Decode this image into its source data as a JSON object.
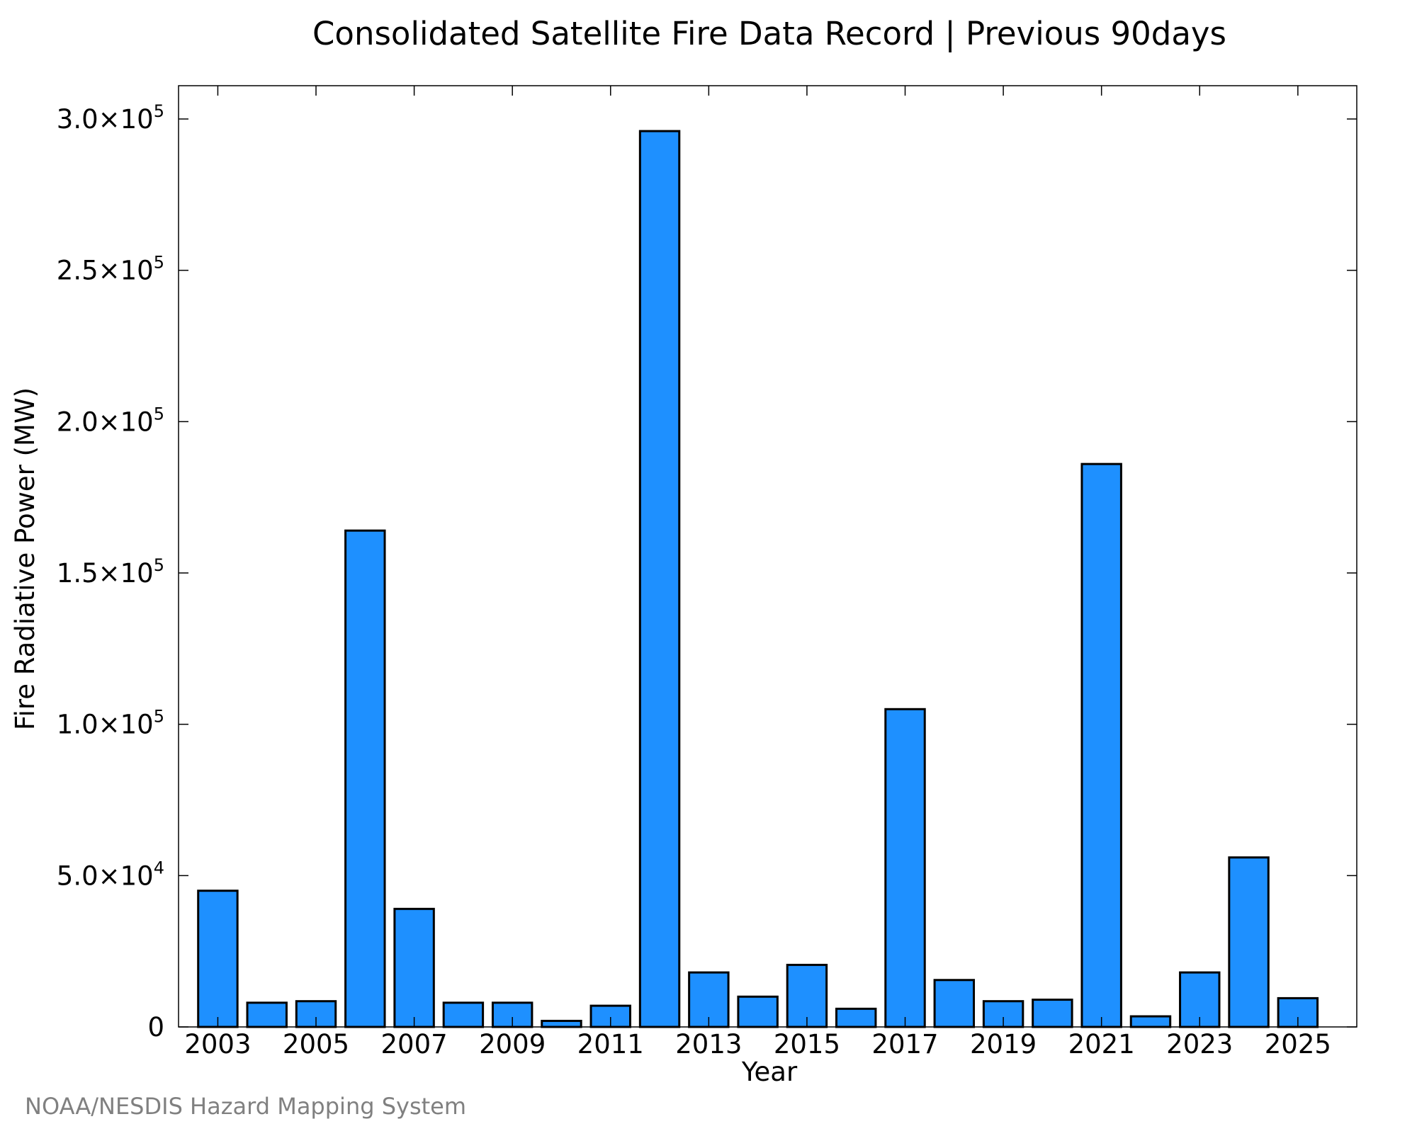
{
  "chart_data": {
    "type": "bar",
    "title": "Consolidated Satellite Fire Data Record | Previous 90days",
    "xlabel": "Year",
    "ylabel": "Fire Radiative Power (MW)",
    "categories": [
      2003,
      2004,
      2005,
      2006,
      2007,
      2008,
      2009,
      2010,
      2011,
      2012,
      2013,
      2014,
      2015,
      2016,
      2017,
      2018,
      2019,
      2020,
      2021,
      2022,
      2023,
      2024,
      2025
    ],
    "values": [
      45000,
      8000,
      8500,
      164000,
      39000,
      8000,
      8000,
      2000,
      7000,
      296000,
      18000,
      10000,
      20500,
      6000,
      105000,
      15500,
      8500,
      9000,
      186000,
      3500,
      18000,
      56000,
      9500
    ],
    "xlim": [
      2002.2,
      2026.2
    ],
    "ylim": [
      0,
      311000
    ],
    "x_ticks": [
      "2003",
      "2005",
      "2007",
      "2009",
      "2011",
      "2013",
      "2015",
      "2017",
      "2019",
      "2021",
      "2023",
      "2025"
    ],
    "x_tick_values": [
      2003,
      2005,
      2007,
      2009,
      2011,
      2013,
      2015,
      2017,
      2019,
      2021,
      2023,
      2025
    ],
    "y_ticks": [
      {
        "value": 0,
        "mantissa": "0",
        "times": "",
        "base": "",
        "exp": ""
      },
      {
        "value": 50000,
        "mantissa": "5.0",
        "times": "×",
        "base": "10",
        "exp": "4"
      },
      {
        "value": 100000,
        "mantissa": "1.0",
        "times": "×",
        "base": "10",
        "exp": "5"
      },
      {
        "value": 150000,
        "mantissa": "1.5",
        "times": "×",
        "base": "10",
        "exp": "5"
      },
      {
        "value": 200000,
        "mantissa": "2.0",
        "times": "×",
        "base": "10",
        "exp": "5"
      },
      {
        "value": 250000,
        "mantissa": "2.5",
        "times": "×",
        "base": "10",
        "exp": "5"
      },
      {
        "value": 300000,
        "mantissa": "3.0",
        "times": "×",
        "base": "10",
        "exp": "5"
      }
    ],
    "grid": false,
    "legend": "none",
    "bar_color": "#1e90ff",
    "bar_edge_color": "#000000"
  },
  "credit": "NOAA/NESDIS Hazard Mapping System"
}
